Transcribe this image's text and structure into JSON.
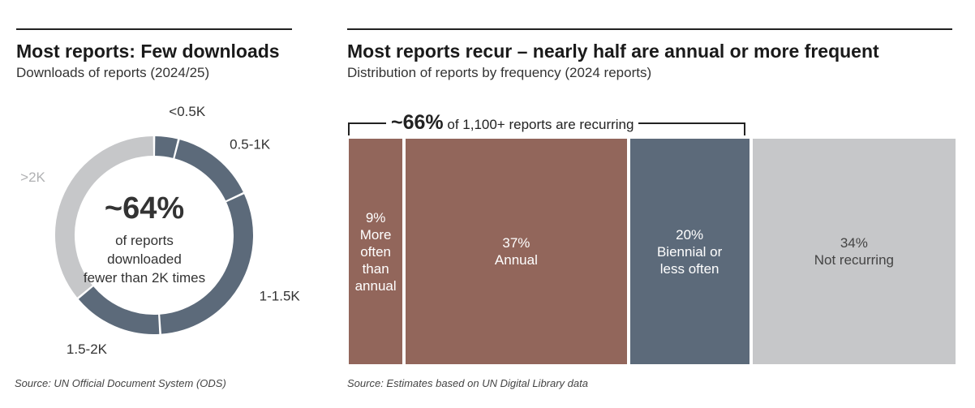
{
  "colors": {
    "dark": "#5c6a7a",
    "light": "#c6c7c9",
    "brown": "#92665b"
  },
  "left": {
    "title": "Most reports: Few downloads",
    "subtitle": "Downloads of reports (2024/25)",
    "center_value": "~64%",
    "center_lines": [
      "of reports",
      "downloaded",
      "fewer than 2K times"
    ],
    "source": "Source: UN Official Document System (ODS)"
  },
  "right": {
    "title": "Most reports recur – nearly half are annual or more frequent",
    "subtitle": "Distribution of reports by frequency (2024 reports)",
    "bracket_value": "~66%",
    "bracket_text": " of 1,100+ reports are recurring",
    "source": "Source: Estimates based on UN Digital Library data"
  },
  "chart_data": [
    {
      "type": "pie",
      "title": "Most reports: Few downloads",
      "subtitle": "Downloads of reports (2024/25)",
      "categories": [
        "<0.5K",
        "0.5-1K",
        "1-1.5K",
        "1.5-2K",
        ">2K"
      ],
      "values": [
        4,
        14,
        31,
        15,
        36
      ],
      "colors": [
        "#5c6a7a",
        "#5c6a7a",
        "#5c6a7a",
        "#5c6a7a",
        "#c6c7c9"
      ],
      "donut": true,
      "annotation": "~64% of reports downloaded fewer than 2K times"
    },
    {
      "type": "bar",
      "orientation": "stacked-horizontal",
      "title": "Most reports recur – nearly half are annual or more frequent",
      "subtitle": "Distribution of reports by frequency (2024 reports)",
      "categories": [
        "More often than annual",
        "Annual",
        "Biennial or less often",
        "Not recurring"
      ],
      "values": [
        9,
        37,
        20,
        34
      ],
      "value_labels": [
        "9%",
        "37%",
        "20%",
        "34%"
      ],
      "category_lines": [
        [
          "More",
          "often",
          "than",
          "annual"
        ],
        [
          "Annual"
        ],
        [
          "Biennial or",
          "less often"
        ],
        [
          "Not recurring"
        ]
      ],
      "colors": [
        "#92665b",
        "#92665b",
        "#5c6a7a",
        "#c6c7c9"
      ],
      "text_colors": [
        "#ffffff",
        "#ffffff",
        "#ffffff",
        "#444444"
      ],
      "annotation": "~66% of 1,100+ reports are recurring"
    }
  ]
}
